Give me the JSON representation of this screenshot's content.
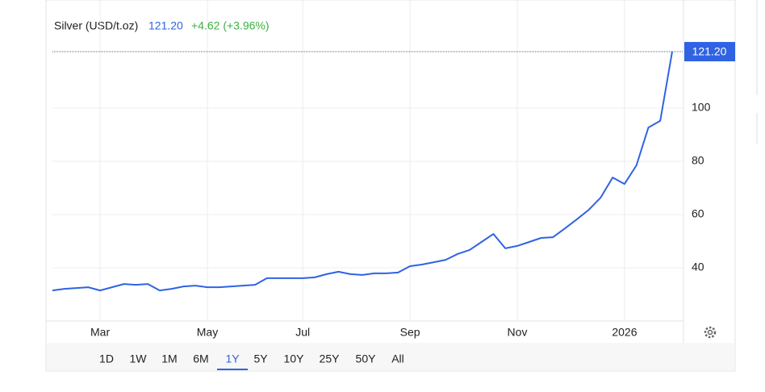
{
  "header": {
    "instrument": "Silver (USD/t.oz)",
    "price": "121.20",
    "change": "+4.62 (+3.96%)"
  },
  "chart_data": {
    "type": "line",
    "categories": [
      null,
      null,
      null,
      null,
      "Mar",
      null,
      null,
      null,
      null,
      null,
      null,
      null,
      null,
      "May",
      null,
      null,
      null,
      null,
      null,
      null,
      null,
      "Jul",
      null,
      null,
      null,
      null,
      null,
      null,
      null,
      null,
      "Sep",
      null,
      null,
      null,
      null,
      null,
      null,
      null,
      null,
      "Nov",
      null,
      null,
      null,
      null,
      null,
      null,
      null,
      null,
      "2026",
      null,
      null,
      null,
      null
    ],
    "series": [
      {
        "name": "Silver",
        "color": "#2f63e3",
        "values": [
          31.5,
          32.1,
          32.4,
          32.7,
          31.5,
          32.7,
          33.9,
          33.6,
          33.9,
          31.5,
          32.1,
          33.0,
          33.3,
          32.7,
          32.7,
          33.0,
          33.3,
          33.6,
          36.1,
          36.1,
          36.1,
          36.1,
          36.4,
          37.6,
          38.5,
          37.6,
          37.3,
          37.9,
          37.9,
          38.2,
          40.6,
          41.2,
          42.1,
          43.0,
          45.2,
          46.7,
          49.7,
          52.7,
          47.3,
          48.2,
          49.7,
          51.2,
          51.5,
          54.8,
          58.2,
          61.8,
          66.4,
          73.9,
          71.5,
          78.5,
          92.7,
          95.2,
          121.2
        ]
      }
    ],
    "ylim": [
      20,
      140
    ],
    "yticks": [
      40,
      60,
      80,
      100
    ],
    "grid": true,
    "ranges": [
      "1D",
      "1W",
      "1M",
      "6M",
      "1Y",
      "5Y",
      "10Y",
      "25Y",
      "50Y",
      "All"
    ],
    "selected_range": "1Y"
  }
}
